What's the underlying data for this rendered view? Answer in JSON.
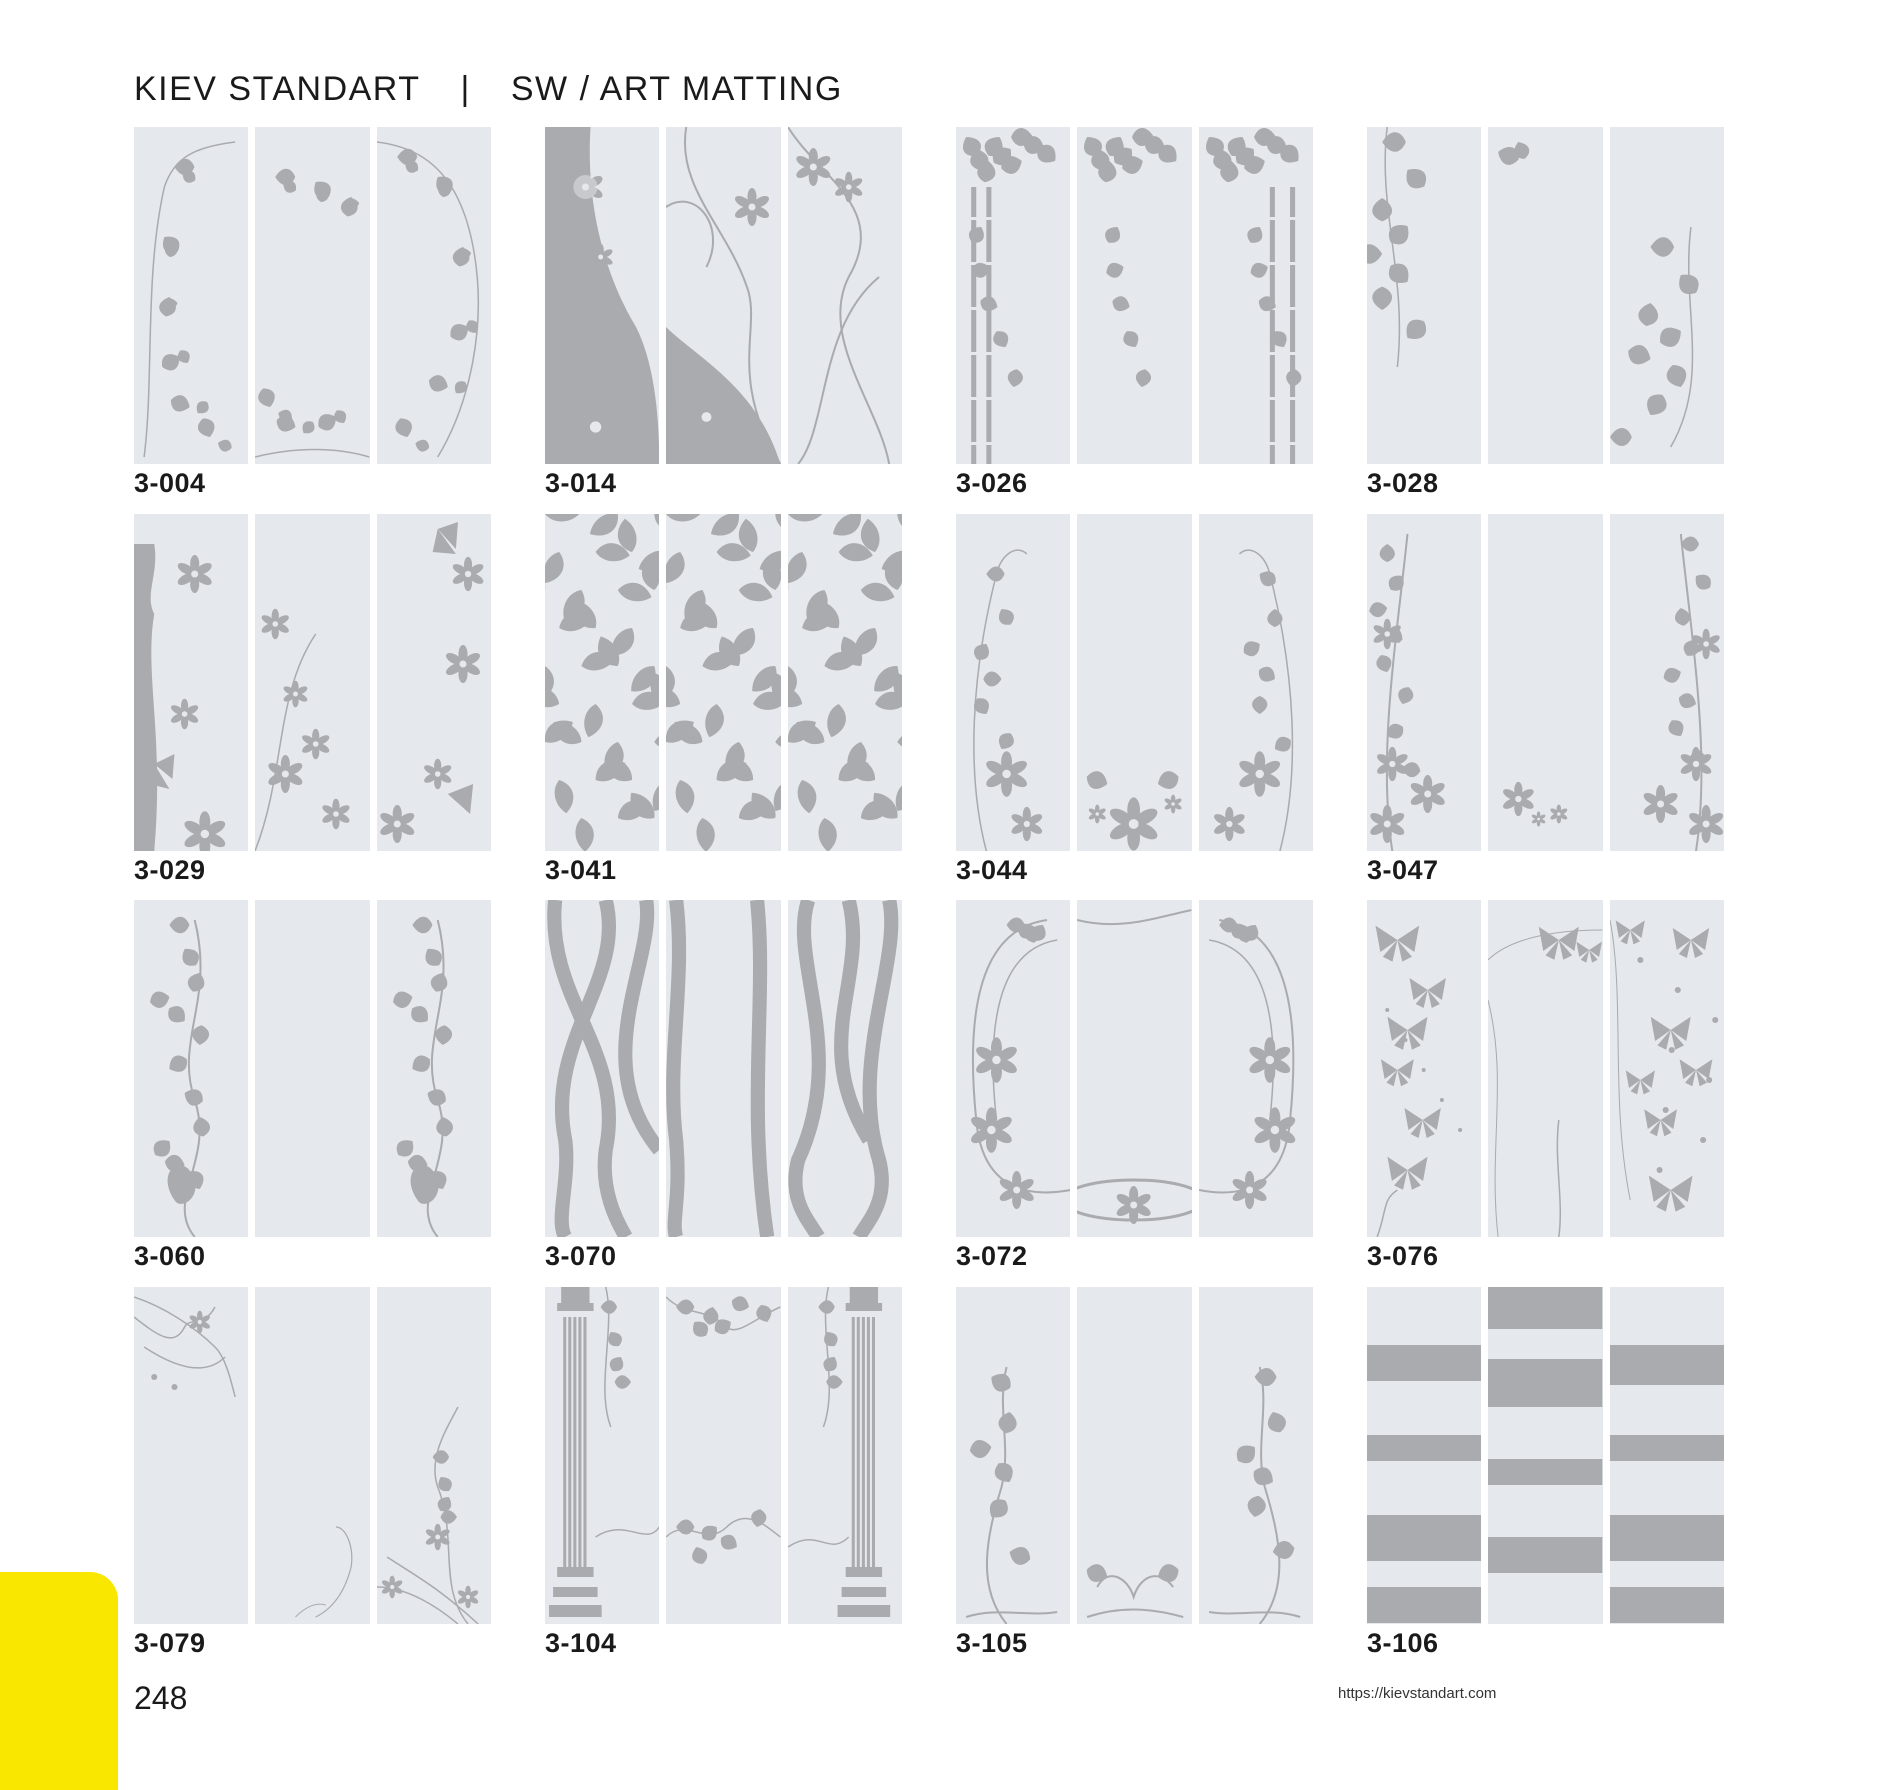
{
  "header": {
    "brand": "KIEV STANDART",
    "separator": "|",
    "section": "SW /  ART MATTING"
  },
  "items": [
    {
      "code": "3-004",
      "pattern": "ivy-wreath"
    },
    {
      "code": "3-014",
      "pattern": "flower-wave"
    },
    {
      "code": "3-026",
      "pattern": "bamboo-arch"
    },
    {
      "code": "3-028",
      "pattern": "ivy-corners"
    },
    {
      "code": "3-029",
      "pattern": "butterflies-flowers"
    },
    {
      "code": "3-041",
      "pattern": "leaves-full"
    },
    {
      "code": "3-044",
      "pattern": "lily-arch"
    },
    {
      "code": "3-047",
      "pattern": "flower-arch"
    },
    {
      "code": "3-060",
      "pattern": "vine-sides"
    },
    {
      "code": "3-070",
      "pattern": "ribbons"
    },
    {
      "code": "3-072",
      "pattern": "lily-frame"
    },
    {
      "code": "3-076",
      "pattern": "butterflies"
    },
    {
      "code": "3-079",
      "pattern": "swirl-corners"
    },
    {
      "code": "3-104",
      "pattern": "columns-vines"
    },
    {
      "code": "3-105",
      "pattern": "sprouts"
    },
    {
      "code": "3-106",
      "pattern": "stripes"
    }
  ],
  "footer": {
    "page_number": "248",
    "url": "https://kievstandart.com"
  },
  "colors": {
    "panel": "#e5e8ec",
    "pattern": "#a9abae",
    "accent": "#f9e700"
  }
}
